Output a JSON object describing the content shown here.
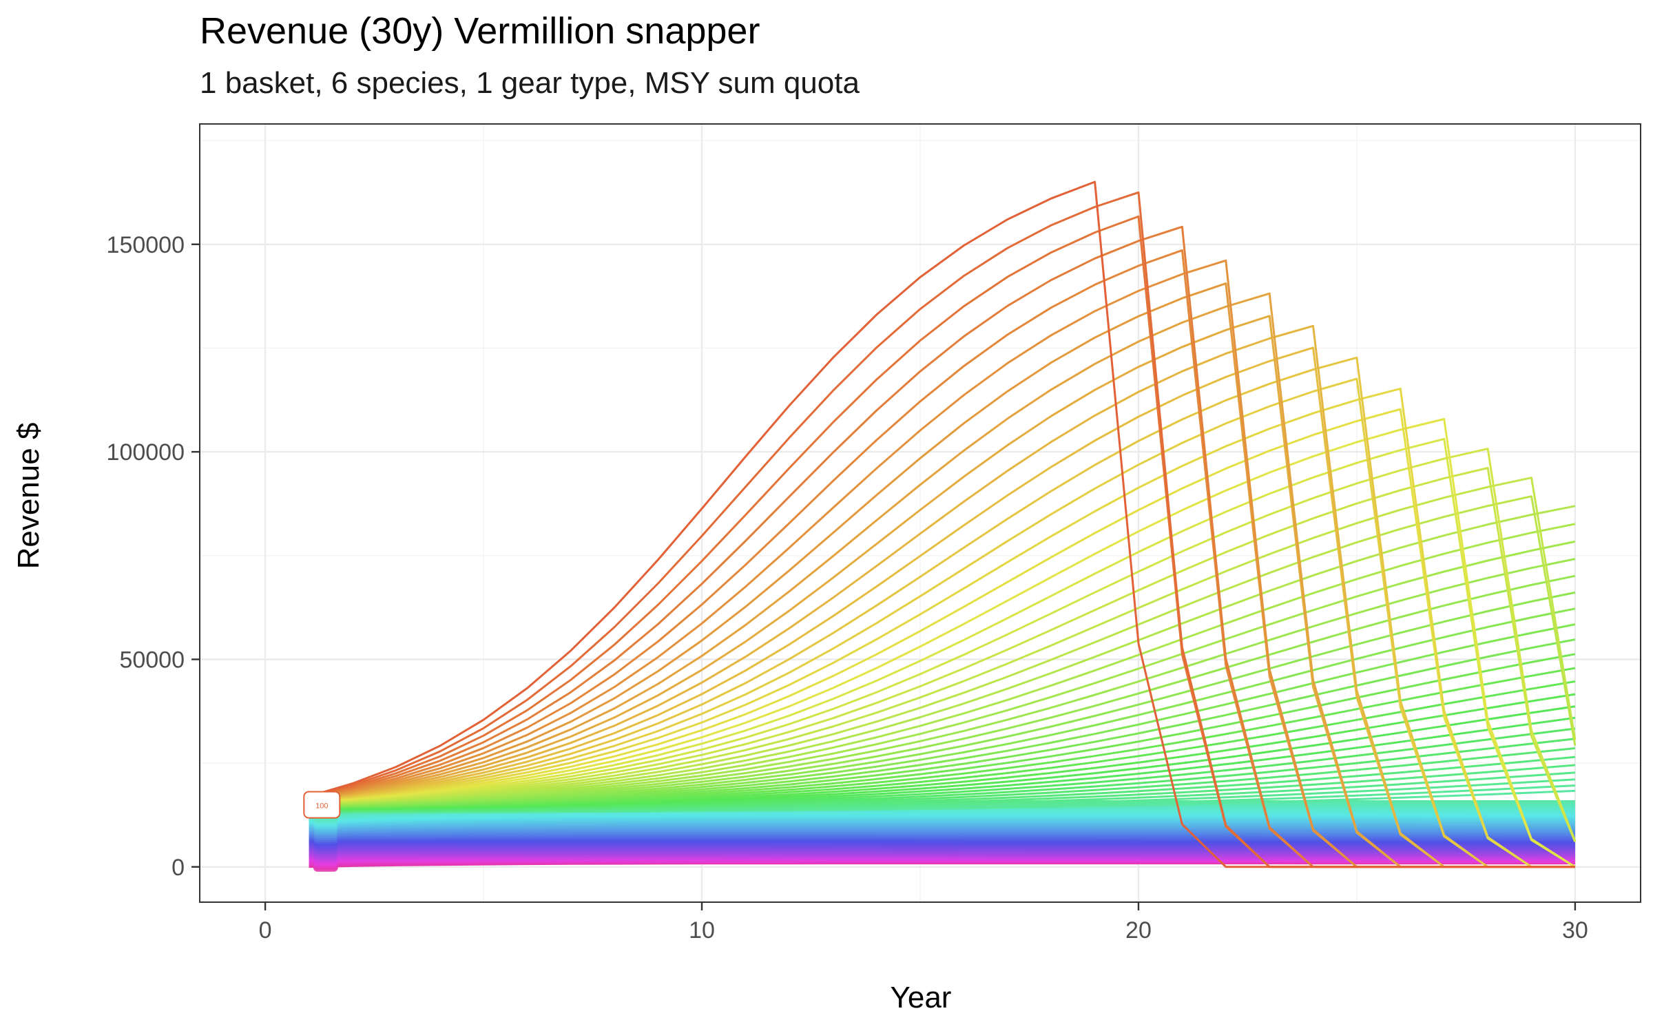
{
  "chart_data": {
    "type": "line",
    "title": "Revenue (30y) Vermillion snapper",
    "subtitle": "1 basket, 6 species, 1 gear type, MSY sum quota",
    "xlabel": "Year",
    "ylabel": "Revenue $",
    "xlim": [
      -1.5,
      31.5
    ],
    "ylim": [
      -8500,
      179000
    ],
    "x_ticks": [
      0,
      10,
      20,
      30
    ],
    "y_ticks": [
      0,
      50000,
      100000,
      150000
    ],
    "x_tick_labels": [
      "0",
      "10",
      "20",
      "30"
    ],
    "y_tick_labels": [
      "0",
      "50000",
      "100000",
      "150000"
    ],
    "grid": true,
    "legend": "none",
    "series_count": 100,
    "label_badge": "100",
    "representative_series": [
      {
        "x": [
          1,
          2,
          3,
          4,
          5,
          6,
          7,
          8,
          9,
          10,
          11,
          12,
          13,
          14,
          15,
          16,
          17,
          18,
          19,
          20
        ],
        "values": [
          17000,
          21000,
          25500,
          30500,
          37000,
          45000,
          54500,
          67000,
          82000,
          98500,
          110000,
          120500,
          129000,
          135000,
          140000,
          145000,
          152000,
          160500,
          171000,
          0
        ]
      },
      {
        "x": [
          1,
          5,
          10,
          15,
          20,
          21,
          22,
          23,
          24,
          25,
          26,
          27,
          28,
          29,
          30
        ],
        "values": [
          16500,
          34000,
          88000,
          130000,
          155000,
          160000,
          151000,
          140000,
          125000,
          110000,
          96000,
          84000,
          74000,
          66000,
          60000
        ]
      },
      {
        "x": [
          1,
          5,
          10,
          15,
          20,
          25,
          30
        ],
        "values": [
          15000,
          24000,
          34000,
          44000,
          54000,
          64000,
          75000
        ]
      },
      {
        "x": [
          1,
          5,
          10,
          15,
          20,
          25,
          30
        ],
        "values": [
          12500,
          18500,
          20000,
          20500,
          21000,
          21500,
          22000
        ]
      },
      {
        "x": [
          1,
          5,
          10,
          15,
          20,
          25,
          30
        ],
        "values": [
          9500,
          11500,
          12000,
          12000,
          12000,
          12000,
          12000
        ]
      },
      {
        "x": [
          1,
          5,
          10,
          15,
          20,
          25,
          30
        ],
        "values": [
          4000,
          6500,
          7000,
          6500,
          6000,
          5700,
          5500
        ]
      },
      {
        "x": [
          1,
          5,
          10,
          15,
          20,
          25,
          30
        ],
        "values": [
          1000,
          1000,
          1000,
          1000,
          1000,
          1000,
          1000
        ]
      }
    ]
  }
}
